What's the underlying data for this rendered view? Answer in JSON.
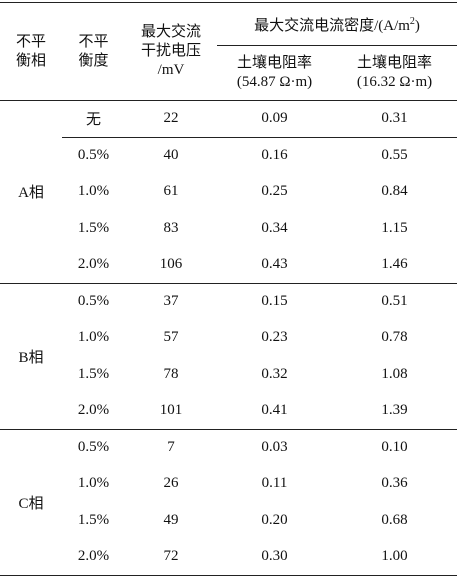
{
  "header": {
    "phase": [
      "不平",
      "衡相"
    ],
    "degree": [
      "不平",
      "衡度"
    ],
    "voltage": [
      "最大交流",
      "干扰电压",
      "/mV"
    ],
    "density": {
      "text": "最大交流电流密度/(A/m",
      "sup": "2",
      "close": ")"
    },
    "soil1": [
      "土壤电阻率",
      "(54.87 Ω·m)"
    ],
    "soil2": [
      "土壤电阻率",
      "(16.32 Ω·m)"
    ]
  },
  "groups": [
    {
      "phase": "A相",
      "rows": [
        [
          "无",
          "22",
          "0.09",
          "0.31"
        ],
        [
          "0.5%",
          "40",
          "0.16",
          "0.55"
        ],
        [
          "1.0%",
          "61",
          "0.25",
          "0.84"
        ],
        [
          "1.5%",
          "83",
          "0.34",
          "1.15"
        ],
        [
          "2.0%",
          "106",
          "0.43",
          "1.46"
        ]
      ]
    },
    {
      "phase": "B相",
      "rows": [
        [
          "0.5%",
          "37",
          "0.15",
          "0.51"
        ],
        [
          "1.0%",
          "57",
          "0.23",
          "0.78"
        ],
        [
          "1.5%",
          "78",
          "0.32",
          "1.08"
        ],
        [
          "2.0%",
          "101",
          "0.41",
          "1.39"
        ]
      ]
    },
    {
      "phase": "C相",
      "rows": [
        [
          "0.5%",
          "7",
          "0.03",
          "0.10"
        ],
        [
          "1.0%",
          "26",
          "0.11",
          "0.36"
        ],
        [
          "1.5%",
          "49",
          "0.20",
          "0.68"
        ],
        [
          "2.0%",
          "72",
          "0.30",
          "1.00"
        ]
      ]
    }
  ]
}
